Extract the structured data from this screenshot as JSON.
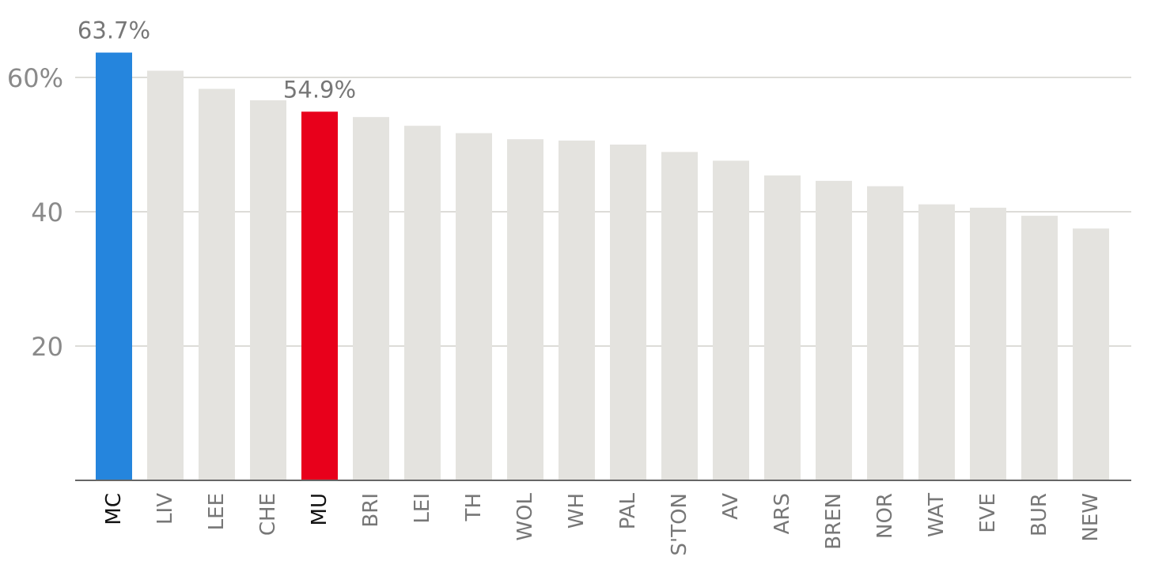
{
  "chart_data": {
    "type": "bar",
    "title": "",
    "xlabel": "",
    "ylabel": "",
    "ylim": [
      0,
      65
    ],
    "yticks": [
      20,
      40,
      60
    ],
    "ytick_labels": [
      "20",
      "40",
      "60%"
    ],
    "grid": true,
    "categories": [
      "MC",
      "LIV",
      "LEE",
      "CHE",
      "MU",
      "BRI",
      "LEI",
      "TH",
      "WOL",
      "WH",
      "PAL",
      "S'TON",
      "AV",
      "ARS",
      "BREN",
      "NOR",
      "WAT",
      "EVE",
      "BUR",
      "NEW"
    ],
    "values": [
      63.7,
      61.0,
      58.3,
      56.6,
      54.9,
      54.1,
      52.8,
      51.7,
      50.8,
      50.6,
      50.0,
      48.9,
      47.6,
      45.4,
      44.6,
      43.8,
      41.1,
      40.6,
      39.4,
      37.5
    ],
    "colors": {
      "default": "#e4e3df",
      "MC": "#2585dd",
      "MU": "#e8001b"
    },
    "highlighted": [
      "MC",
      "MU"
    ],
    "data_labels": [
      {
        "category": "MC",
        "text": "63.7%"
      },
      {
        "category": "MU",
        "text": "54.9%"
      }
    ]
  }
}
